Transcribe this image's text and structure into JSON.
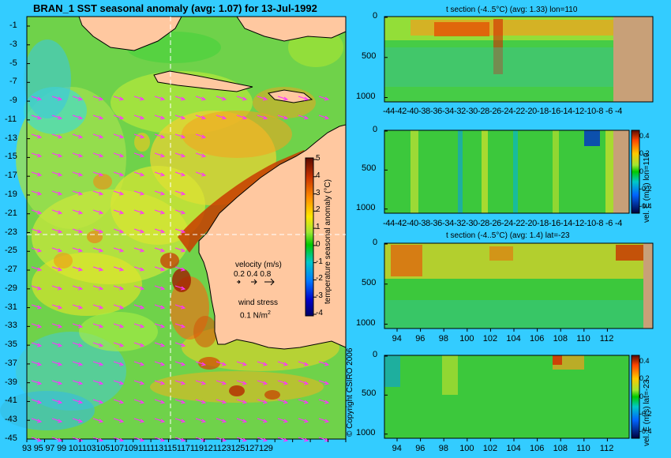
{
  "map": {
    "title": "BRAN_1  SST seasonal anomaly  (avg: 1.07)  for 13-Jul-1992",
    "lat_ticks": [
      "-1",
      "-3",
      "-5",
      "-7",
      "-9",
      "-11",
      "-13",
      "-15",
      "-17",
      "-19",
      "-21",
      "-23",
      "-25",
      "-27",
      "-29",
      "-31",
      "-33",
      "-35",
      "-37",
      "-39",
      "-41",
      "-43",
      "-45"
    ],
    "lon_ticks": [
      "93",
      "95",
      "97",
      "99",
      "101",
      "103",
      "105",
      "107",
      "109",
      "111",
      "113",
      "115",
      "117",
      "119",
      "121",
      "123",
      "125",
      "127",
      "129"
    ],
    "lon_tick_labels": "93 95 97 99 101103105107109111113115117119121123125127129",
    "colorbar": {
      "ticks": [
        "5",
        "4",
        "3",
        "2",
        "1",
        "0",
        "-1",
        "-2",
        "-3",
        "-4"
      ],
      "label": "temperature seasonal anomaly (°C)",
      "range": [
        -4,
        5
      ]
    },
    "velocity_legend": {
      "title": "velocity (m/s)",
      "values": "0.2 0.4 0.8"
    },
    "wind_legend": {
      "title": "wind stress",
      "value": "0.1 N/m",
      "exp": "2"
    },
    "copyright": "© Copyright CSIRO 2006"
  },
  "chart_data": [
    {
      "type": "heatmap",
      "title": "t section (-4..5°C) (avg: 1.33) lon=110",
      "x_ticks": [
        "-44",
        "-42",
        "-40",
        "-38",
        "-36",
        "-34",
        "-32",
        "-30",
        "-28",
        "-26",
        "-24",
        "-22",
        "-20",
        "-18",
        "-16",
        "-14",
        "-12",
        "-10",
        "-8",
        "-6",
        "-4"
      ],
      "x_tick_labels": "-44-42-40-38-36-34-32-30-28-26-24-22-20-18-16-14-12-10-8  -6  -4",
      "y_ticks": [
        "0",
        "500",
        "1000"
      ],
      "ylim": [
        1050,
        0
      ]
    },
    {
      "type": "heatmap",
      "title": "",
      "x_ticks": [
        "-44",
        "-42",
        "-40",
        "-38",
        "-36",
        "-34",
        "-32",
        "-30",
        "-28",
        "-26",
        "-24",
        "-22",
        "-20",
        "-18",
        "-16",
        "-14",
        "-12",
        "-10",
        "-8",
        "-6",
        "-4"
      ],
      "x_tick_labels": "-44-42-40-38-36-34-32-30-28-26-24-22-20-18-16-14-12-10-8  -6  -4",
      "y_ticks": [
        "0",
        "500",
        "1000"
      ],
      "colorbar": {
        "ticks": [
          "0.4",
          "0.2",
          "0",
          "-0.2",
          "-0.4"
        ],
        "label": "vel. E (m/s) lon=110",
        "range": [
          -0.5,
          0.5
        ]
      }
    },
    {
      "type": "heatmap",
      "title": "t section (-4..5°C) (avg: 1.4) lat=-23",
      "x_ticks": [
        "94",
        "96",
        "98",
        "100",
        "102",
        "104",
        "106",
        "108",
        "110",
        "112"
      ],
      "y_ticks": [
        "0",
        "500",
        "1000"
      ]
    },
    {
      "type": "heatmap",
      "title": "",
      "x_ticks": [
        "94",
        "96",
        "98",
        "100",
        "102",
        "104",
        "106",
        "108",
        "110",
        "112"
      ],
      "y_ticks": [
        "0",
        "500",
        "1000"
      ],
      "colorbar": {
        "ticks": [
          "0.4",
          "0.2",
          "0",
          "-0.2",
          "-0.4"
        ],
        "label": "vel. E (m/s) lat=-23",
        "range": [
          -0.5,
          0.5
        ]
      }
    }
  ]
}
